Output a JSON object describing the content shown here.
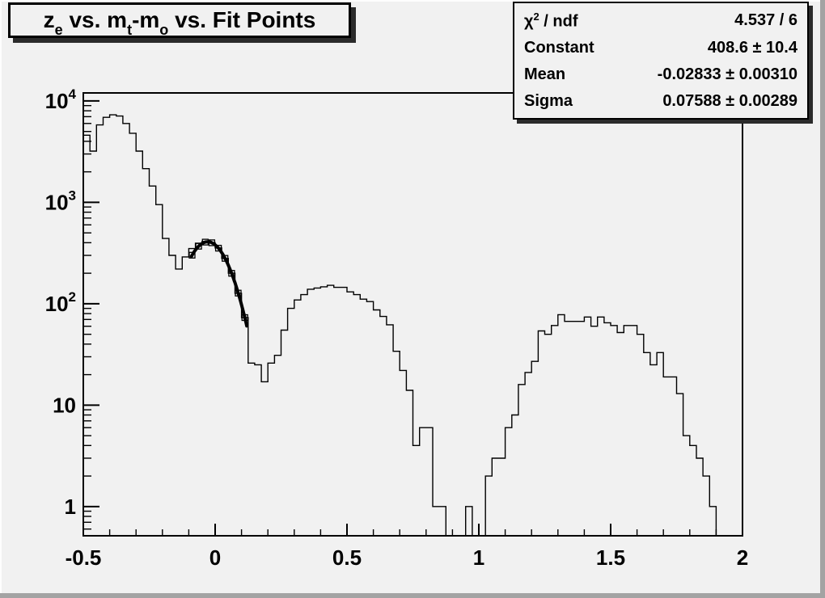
{
  "canvas": {
    "bg": "#f1f1f1",
    "line_color": "#000000",
    "bevel_light": "#fdfdfd",
    "bevel_dark": "#a3a3a3",
    "box_shadow_color": "#2b2b2b"
  },
  "title": {
    "parts": [
      {
        "t": "z"
      },
      {
        "t": "e"
      },
      {
        "t": " vs. m"
      },
      {
        "t": "t"
      },
      {
        "t": "-m"
      },
      {
        "t": "o"
      },
      {
        "t": " vs. Fit Points"
      }
    ],
    "plain": "z_e vs. m_t-m_o vs. Fit Points"
  },
  "stats": {
    "rows": [
      {
        "label_main": "χ",
        "label_sup": "2",
        "label_rest": " / ndf",
        "value": "4.537 / 6"
      },
      {
        "label": "Constant",
        "value": "408.6 ± 10.4"
      },
      {
        "label": "Mean",
        "value": "-0.02833 ± 0.00310"
      },
      {
        "label": "Sigma",
        "value": "0.07588 ± 0.00289"
      }
    ]
  },
  "chart_data": {
    "type": "bar",
    "subtype": "step-histogram-logy",
    "title": "z_e vs. m_t-m_o vs. Fit Points",
    "xlabel": "",
    "ylabel": "",
    "xlim": [
      -0.5,
      2
    ],
    "ylim_log": [
      0.515,
      12000
    ],
    "grid": false,
    "x_start": -0.5,
    "bin_width": 0.025,
    "values": [
      4600,
      3200,
      5800,
      6900,
      7300,
      7100,
      6000,
      4800,
      3200,
      2150,
      1450,
      950,
      440,
      300,
      220,
      290,
      350,
      395,
      410,
      400,
      355,
      280,
      200,
      127,
      73,
      26,
      25,
      17,
      26,
      31,
      55,
      90,
      109,
      123,
      139,
      143,
      147,
      152,
      145,
      145,
      131,
      123,
      111,
      105,
      87,
      75,
      62,
      34,
      22,
      14,
      4,
      6,
      6,
      1,
      1,
      0,
      0,
      0,
      1,
      0,
      0,
      2,
      3,
      3,
      6,
      8,
      16,
      21,
      27,
      54,
      50,
      61,
      78,
      67,
      67,
      67,
      74,
      60,
      74,
      65,
      61,
      52,
      61,
      61,
      50,
      33,
      25,
      33,
      19,
      19,
      13,
      5,
      4,
      3,
      2,
      1,
      0,
      0,
      0,
      0
    ],
    "x_ticks_major": [
      -0.5,
      0,
      0.5,
      1,
      1.5,
      2
    ],
    "x_tick_labels": [
      "-0.5",
      "0",
      "0.5",
      "1",
      "1.5",
      "2"
    ],
    "x_minor_step": 0.1,
    "y_ticks": [
      {
        "v": 1,
        "base": "1",
        "exp": ""
      },
      {
        "v": 10,
        "base": "10",
        "exp": ""
      },
      {
        "v": 100,
        "base": "10",
        "exp": "2"
      },
      {
        "v": 1000,
        "base": "10",
        "exp": "3"
      },
      {
        "v": 10000,
        "base": "10",
        "exp": "4"
      }
    ],
    "fit": {
      "type": "gaussian",
      "constant": 408.6,
      "mean": -0.02833,
      "sigma": 0.07588,
      "chi2_ndf": "4.537 / 6",
      "draw_range": [
        -0.09,
        0.122
      ],
      "marker_centers": [
        -0.0875,
        -0.0625,
        -0.0375,
        -0.0125,
        0.0125,
        0.0375,
        0.0625,
        0.0875,
        0.1125
      ]
    }
  }
}
